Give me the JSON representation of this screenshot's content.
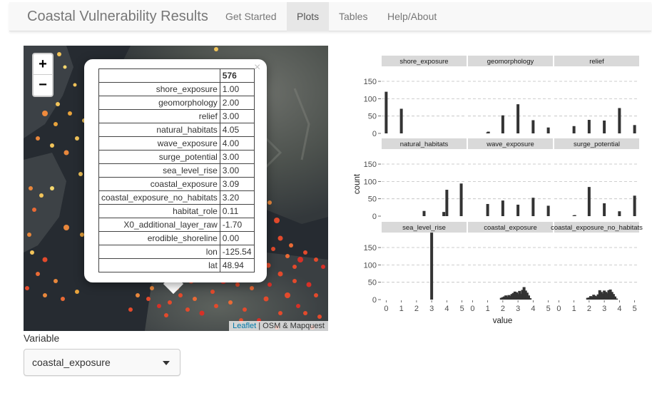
{
  "navbar": {
    "brand": "Coastal Vulnerability Results",
    "items": [
      {
        "label": "Get Started",
        "active": false
      },
      {
        "label": "Plots",
        "active": true
      },
      {
        "label": "Tables",
        "active": false
      },
      {
        "label": "Help/About",
        "active": false
      }
    ]
  },
  "map": {
    "zoom_in": "+",
    "zoom_out": "−",
    "attribution_link": "Leaflet",
    "attribution_text": "| OSM & Mapquest",
    "popup": {
      "close": "×",
      "header_value": "576",
      "rows": [
        {
          "key": "shore_exposure",
          "value": "1.00"
        },
        {
          "key": "geomorphology",
          "value": "2.00"
        },
        {
          "key": "relief",
          "value": "3.00"
        },
        {
          "key": "natural_habitats",
          "value": "4.05"
        },
        {
          "key": "wave_exposure",
          "value": "4.00"
        },
        {
          "key": "surge_potential",
          "value": "3.00"
        },
        {
          "key": "sea_level_rise",
          "value": "3.00"
        },
        {
          "key": "coastal_exposure",
          "value": "3.09"
        },
        {
          "key": "coastal_exposure_no_habitats",
          "value": "3.20"
        },
        {
          "key": "habitat_role",
          "value": "0.11"
        },
        {
          "key": "X0_additional_layer_raw",
          "value": "-1.70"
        },
        {
          "key": "erodible_shoreline",
          "value": "0.00"
        },
        {
          "key": "lon",
          "value": "-125.54"
        },
        {
          "key": "lat",
          "value": "48.94"
        }
      ]
    }
  },
  "controls": {
    "variable_label": "Variable",
    "selected_variable": "coastal_exposure"
  },
  "colors": {
    "bar": "#333333",
    "strip": "#d9d9d9",
    "grid": "#bfbfbf",
    "accent_active": "#e7e7e7"
  },
  "chart_data": {
    "type": "bar",
    "xlabel": "value",
    "ylabel": "count",
    "x_ticks": [
      "0",
      "1",
      "2",
      "3",
      "4",
      "5"
    ],
    "y_ticks": [
      "0",
      "50",
      "100",
      "150"
    ],
    "xlim": [
      -0.3,
      5.3
    ],
    "ylim": [
      0,
      185
    ],
    "grid": true,
    "panels": [
      {
        "name": "shore_exposure",
        "bars": [
          [
            0,
            120
          ],
          [
            1,
            71
          ]
        ]
      },
      {
        "name": "geomorphology",
        "bars": [
          [
            1,
            3
          ],
          [
            1.05,
            5
          ],
          [
            2,
            52
          ],
          [
            3,
            84
          ],
          [
            4,
            38
          ],
          [
            5,
            17
          ]
        ]
      },
      {
        "name": "relief",
        "bars": [
          [
            1,
            21
          ],
          [
            2,
            39
          ],
          [
            3,
            37
          ],
          [
            4,
            73
          ],
          [
            5,
            24
          ]
        ]
      },
      {
        "name": "natural_habitats",
        "bars": [
          [
            2.5,
            15
          ],
          [
            3.8,
            12
          ],
          [
            4.0,
            76
          ],
          [
            4.95,
            94
          ]
        ]
      },
      {
        "name": "wave_exposure",
        "bars": [
          [
            1,
            35
          ],
          [
            2,
            45
          ],
          [
            3,
            33
          ],
          [
            4,
            53
          ],
          [
            5,
            30
          ]
        ]
      },
      {
        "name": "surge_potential",
        "bars": [
          [
            1,
            2
          ],
          [
            1.05,
            3
          ],
          [
            2,
            84
          ],
          [
            3,
            37
          ],
          [
            4,
            14
          ],
          [
            5,
            59
          ]
        ]
      },
      {
        "name": "sea_level_rise",
        "bars": [
          [
            3,
            193
          ]
        ]
      },
      {
        "name": "coastal_exposure",
        "bars": [
          [
            1.9,
            5
          ],
          [
            2.0,
            7
          ],
          [
            2.1,
            9
          ],
          [
            2.2,
            12
          ],
          [
            2.3,
            8
          ],
          [
            2.4,
            13
          ],
          [
            2.5,
            10
          ],
          [
            2.6,
            16
          ],
          [
            2.7,
            19
          ],
          [
            2.8,
            23
          ],
          [
            2.9,
            21
          ],
          [
            3.0,
            16
          ],
          [
            3.1,
            25
          ],
          [
            3.2,
            17
          ],
          [
            3.3,
            28
          ],
          [
            3.4,
            36
          ],
          [
            3.5,
            26
          ],
          [
            3.6,
            20
          ],
          [
            3.7,
            12
          ],
          [
            3.8,
            4
          ]
        ]
      },
      {
        "name": "coastal_exposure_no_habitats",
        "bars": [
          [
            1.9,
            5
          ],
          [
            2.0,
            6
          ],
          [
            2.1,
            10
          ],
          [
            2.2,
            8
          ],
          [
            2.3,
            14
          ],
          [
            2.4,
            11
          ],
          [
            2.5,
            9
          ],
          [
            2.6,
            15
          ],
          [
            2.7,
            27
          ],
          [
            2.8,
            22
          ],
          [
            2.9,
            17
          ],
          [
            3.0,
            26
          ],
          [
            3.1,
            22
          ],
          [
            3.2,
            18
          ],
          [
            3.3,
            27
          ],
          [
            3.4,
            29
          ],
          [
            3.5,
            22
          ],
          [
            3.6,
            16
          ],
          [
            3.7,
            9
          ],
          [
            3.8,
            3
          ]
        ]
      }
    ]
  }
}
